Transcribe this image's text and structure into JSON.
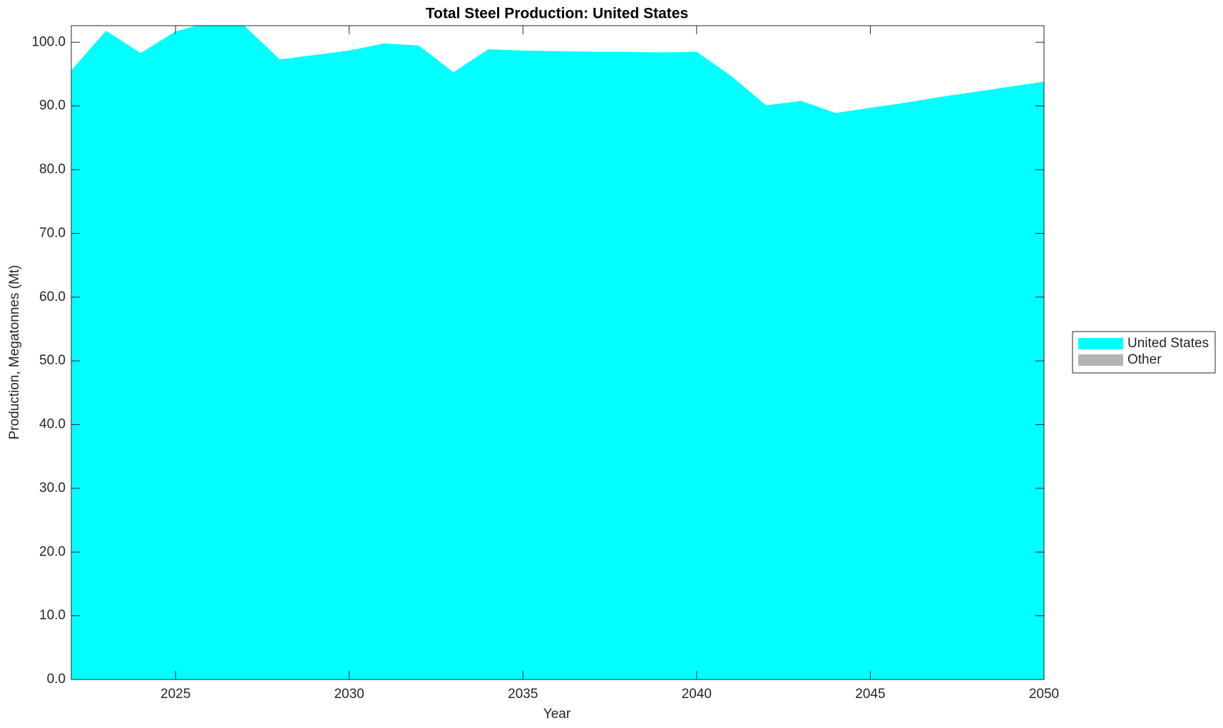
{
  "chart_data": {
    "type": "area",
    "stacked": true,
    "title": "Total Steel Production: United States",
    "xlabel": "Year",
    "ylabel": "Production, Megatonnes (Mt)",
    "x": [
      2022,
      2023,
      2024,
      2025,
      2026,
      2027,
      2028,
      2029,
      2030,
      2031,
      2032,
      2033,
      2034,
      2035,
      2036,
      2037,
      2038,
      2039,
      2040,
      2041,
      2042,
      2043,
      2044,
      2045,
      2046,
      2047,
      2048,
      2049,
      2050
    ],
    "series": [
      {
        "name": "United States",
        "color": "#00ffff",
        "values": [
          95.6,
          101.8,
          98.3,
          101.7,
          103.2,
          102.5,
          97.3,
          98.0,
          98.7,
          99.8,
          99.5,
          95.3,
          98.9,
          98.7,
          98.6,
          98.5,
          98.5,
          98.4,
          98.5,
          94.7,
          90.1,
          90.8,
          88.9,
          89.7,
          90.5,
          91.4,
          92.2,
          93.0,
          93.8
        ]
      },
      {
        "name": "Other",
        "color": "#b3b3b3",
        "values": [
          0,
          0,
          0,
          0,
          0,
          0,
          0,
          0,
          0,
          0,
          0,
          0,
          0,
          0,
          0,
          0,
          0,
          0,
          0,
          0,
          0,
          0,
          0,
          0,
          0,
          0,
          0,
          0,
          0
        ]
      }
    ],
    "xlim": [
      2022,
      2050
    ],
    "xticks": [
      2025,
      2030,
      2035,
      2040,
      2045,
      2050
    ],
    "ylim": [
      0,
      102.6
    ],
    "yticks": [
      {
        "value": 0,
        "label": "0.0"
      },
      {
        "value": 10,
        "label": "10.0"
      },
      {
        "value": 20,
        "label": "20.0"
      },
      {
        "value": 30,
        "label": "30.0"
      },
      {
        "value": 40,
        "label": "40.0"
      },
      {
        "value": 50,
        "label": "50.0"
      },
      {
        "value": 60,
        "label": "60.0"
      },
      {
        "value": 70,
        "label": "70.0"
      },
      {
        "value": 80,
        "label": "80.0"
      },
      {
        "value": 90,
        "label": "90.0"
      },
      {
        "value": 100,
        "label": "100.0"
      }
    ],
    "grid": false,
    "legend": "right"
  }
}
